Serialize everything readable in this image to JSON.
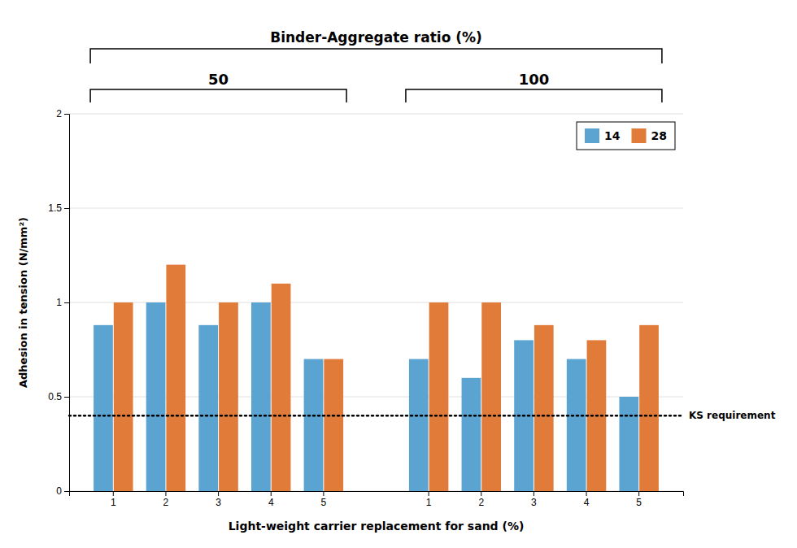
{
  "chart_data": {
    "type": "bar",
    "title": "Binder-Aggregate ratio (%)",
    "x_label": "Light-weight carrier replacement for sand (%)",
    "y_label": "Adhesion in tension (N/mm²)",
    "categories": [
      "1",
      "2",
      "3",
      "4",
      "5",
      "1",
      "2",
      "3",
      "4",
      "5"
    ],
    "category_groups": [
      "50",
      "50",
      "50",
      "50",
      "50",
      "100",
      "100",
      "100",
      "100",
      "100"
    ],
    "series": [
      {
        "name": "14",
        "color": "#5BA3D0",
        "values": [
          0.88,
          1.0,
          0.88,
          1.0,
          0.7,
          0.7,
          0.6,
          0.8,
          0.7,
          0.5
        ]
      },
      {
        "name": "28",
        "color": "#E07B39",
        "values": [
          1.0,
          1.2,
          1.0,
          1.1,
          0.7,
          1.0,
          1.0,
          0.88,
          0.8,
          0.88
        ]
      }
    ],
    "annotations": [
      {
        "text": "KS requirement",
        "y": 0.4
      }
    ],
    "ylim": [
      0,
      2.0
    ],
    "yticks": [
      0,
      0.5,
      1.0,
      1.5,
      2.0
    ],
    "grid": true,
    "legend": "upper right"
  }
}
